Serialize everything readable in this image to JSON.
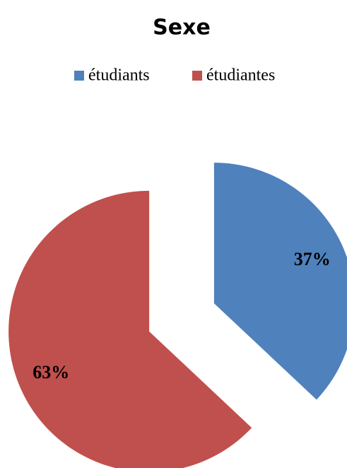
{
  "chart_data": {
    "type": "pie",
    "title": "Sexe",
    "categories": [
      "étudiants",
      "étudiantes"
    ],
    "values": [
      37,
      63
    ],
    "value_labels": [
      "37%",
      "63%"
    ],
    "colors": [
      "#4f81bd",
      "#c0504d"
    ],
    "legend": "top"
  }
}
